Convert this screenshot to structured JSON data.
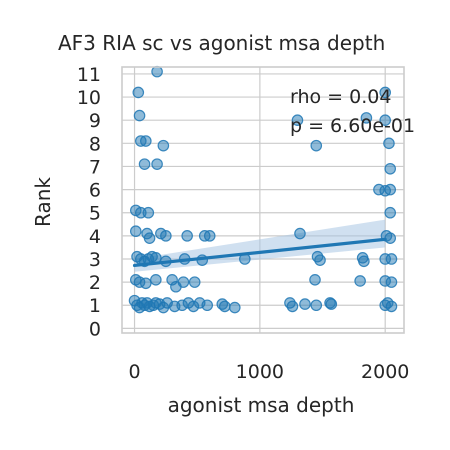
{
  "chart_data": {
    "type": "scatter",
    "title": "AF3 RIA sc vs agonist msa depth",
    "xlabel": "agonist msa depth",
    "ylabel": "Rank",
    "xlim": [
      -100,
      2150
    ],
    "ylim": [
      -0.2,
      11.3
    ],
    "xticks": [
      0,
      1000,
      2000
    ],
    "yticks": [
      0,
      1,
      2,
      3,
      4,
      5,
      6,
      7,
      8,
      9,
      10,
      11
    ],
    "grid": true,
    "annotations": [
      "rho = 0.04",
      "p = 6.60e-01"
    ],
    "colors": {
      "points": "#1f77b4",
      "line": "#1f77b4",
      "band": "#a9c6e3",
      "grid": "#cccccc",
      "spine": "#cccccc"
    },
    "regression": {
      "x": [
        0,
        2000
      ],
      "y": [
        2.72,
        3.85
      ],
      "ci_low": [
        2.45,
        3.5
      ],
      "ci_high": [
        3.0,
        4.7
      ]
    },
    "points": [
      {
        "x": 180,
        "y": 11.1
      },
      {
        "x": 30,
        "y": 10.2
      },
      {
        "x": 2000,
        "y": 10.2
      },
      {
        "x": 40,
        "y": 9.2
      },
      {
        "x": 1300,
        "y": 9.0
      },
      {
        "x": 1850,
        "y": 9.1
      },
      {
        "x": 2000,
        "y": 9.0
      },
      {
        "x": 50,
        "y": 8.1
      },
      {
        "x": 90,
        "y": 8.1
      },
      {
        "x": 230,
        "y": 7.9
      },
      {
        "x": 1450,
        "y": 7.9
      },
      {
        "x": 2030,
        "y": 8.0
      },
      {
        "x": 80,
        "y": 7.1
      },
      {
        "x": 180,
        "y": 7.1
      },
      {
        "x": 2040,
        "y": 6.9
      },
      {
        "x": 1950,
        "y": 6.0
      },
      {
        "x": 2000,
        "y": 5.95
      },
      {
        "x": 2040,
        "y": 6.0
      },
      {
        "x": 10,
        "y": 5.1
      },
      {
        "x": 50,
        "y": 5.0
      },
      {
        "x": 110,
        "y": 5.0
      },
      {
        "x": 2040,
        "y": 5.0
      },
      {
        "x": 10,
        "y": 4.2
      },
      {
        "x": 100,
        "y": 4.1
      },
      {
        "x": 120,
        "y": 3.9
      },
      {
        "x": 210,
        "y": 4.1
      },
      {
        "x": 250,
        "y": 4.0
      },
      {
        "x": 420,
        "y": 4.0
      },
      {
        "x": 560,
        "y": 4.0
      },
      {
        "x": 600,
        "y": 4.0
      },
      {
        "x": 1320,
        "y": 4.1
      },
      {
        "x": 2010,
        "y": 4.0
      },
      {
        "x": 2040,
        "y": 3.9
      },
      {
        "x": 20,
        "y": 3.1
      },
      {
        "x": 50,
        "y": 3.0
      },
      {
        "x": 80,
        "y": 2.9
      },
      {
        "x": 110,
        "y": 3.0
      },
      {
        "x": 140,
        "y": 3.1
      },
      {
        "x": 170,
        "y": 3.05
      },
      {
        "x": 250,
        "y": 2.9
      },
      {
        "x": 400,
        "y": 3.0
      },
      {
        "x": 540,
        "y": 2.95
      },
      {
        "x": 880,
        "y": 3.0
      },
      {
        "x": 1460,
        "y": 3.1
      },
      {
        "x": 1480,
        "y": 2.95
      },
      {
        "x": 1820,
        "y": 3.05
      },
      {
        "x": 1830,
        "y": 2.9
      },
      {
        "x": 2000,
        "y": 3.0
      },
      {
        "x": 2050,
        "y": 3.0
      },
      {
        "x": 10,
        "y": 2.1
      },
      {
        "x": 40,
        "y": 2.0
      },
      {
        "x": 90,
        "y": 1.95
      },
      {
        "x": 170,
        "y": 2.1
      },
      {
        "x": 300,
        "y": 2.1
      },
      {
        "x": 330,
        "y": 1.8
      },
      {
        "x": 390,
        "y": 2.0
      },
      {
        "x": 480,
        "y": 2.0
      },
      {
        "x": 1440,
        "y": 2.1
      },
      {
        "x": 1800,
        "y": 2.05
      },
      {
        "x": 2000,
        "y": 2.05
      },
      {
        "x": 2050,
        "y": 2.0
      },
      {
        "x": 0,
        "y": 1.2
      },
      {
        "x": 20,
        "y": 1.0
      },
      {
        "x": 40,
        "y": 0.9
      },
      {
        "x": 60,
        "y": 1.1
      },
      {
        "x": 80,
        "y": 1.0
      },
      {
        "x": 100,
        "y": 1.1
      },
      {
        "x": 120,
        "y": 0.95
      },
      {
        "x": 150,
        "y": 1.0
      },
      {
        "x": 170,
        "y": 1.1
      },
      {
        "x": 200,
        "y": 1.05
      },
      {
        "x": 230,
        "y": 0.9
      },
      {
        "x": 260,
        "y": 1.1
      },
      {
        "x": 320,
        "y": 0.95
      },
      {
        "x": 380,
        "y": 1.0
      },
      {
        "x": 430,
        "y": 1.1
      },
      {
        "x": 470,
        "y": 0.95
      },
      {
        "x": 520,
        "y": 1.1
      },
      {
        "x": 580,
        "y": 1.0
      },
      {
        "x": 700,
        "y": 1.05
      },
      {
        "x": 720,
        "y": 0.95
      },
      {
        "x": 800,
        "y": 0.9
      },
      {
        "x": 1240,
        "y": 1.1
      },
      {
        "x": 1260,
        "y": 0.95
      },
      {
        "x": 1360,
        "y": 1.05
      },
      {
        "x": 1450,
        "y": 1.0
      },
      {
        "x": 1560,
        "y": 1.1
      },
      {
        "x": 1570,
        "y": 1.05
      },
      {
        "x": 2000,
        "y": 1.0
      },
      {
        "x": 2020,
        "y": 1.1
      },
      {
        "x": 2050,
        "y": 0.95
      }
    ]
  }
}
